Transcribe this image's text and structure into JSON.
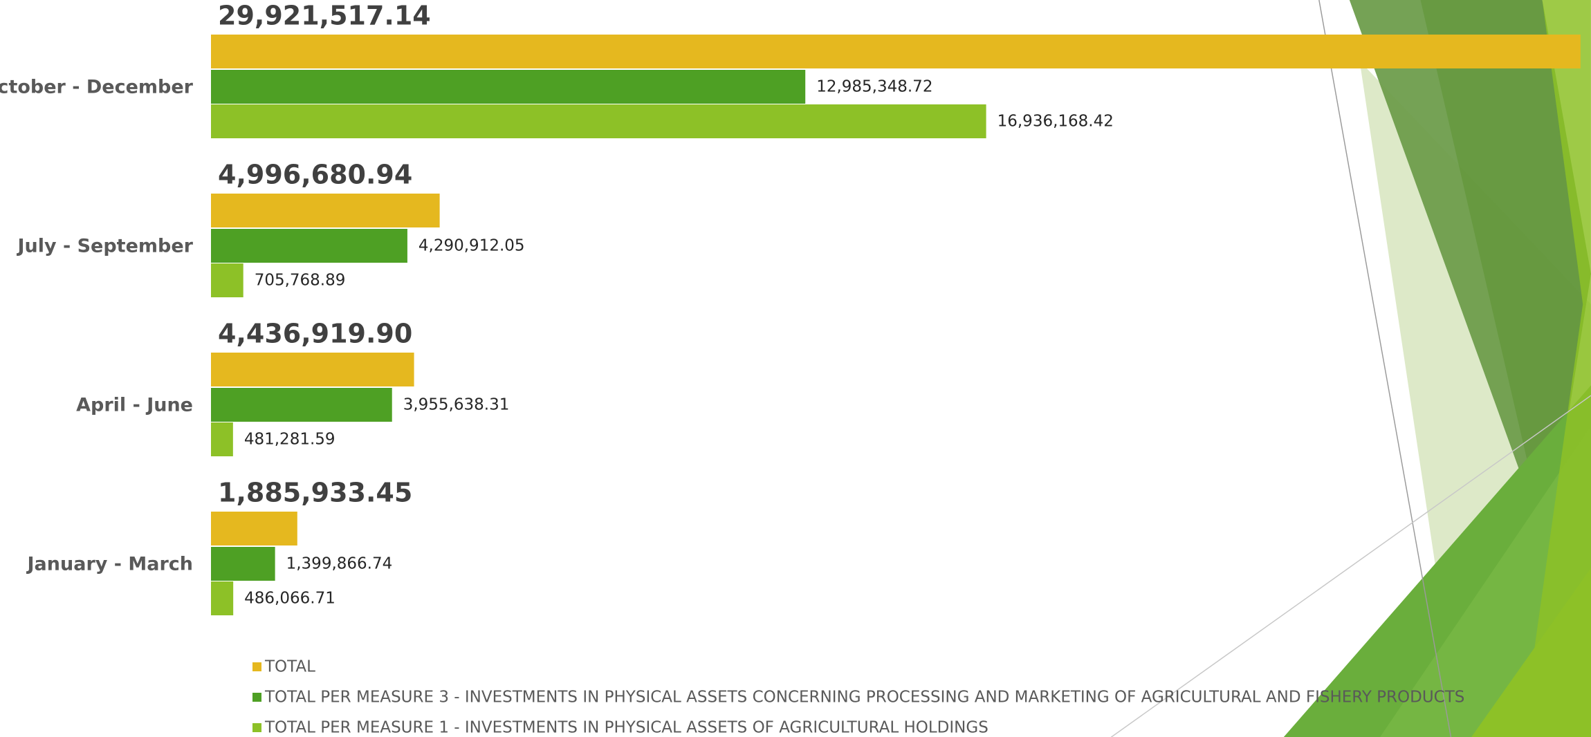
{
  "chart_data": {
    "type": "bar",
    "orientation": "horizontal",
    "categories": [
      "January - March",
      "April - June",
      "July - September",
      "October - December"
    ],
    "series": [
      {
        "name": "TOTAL",
        "color": "#e5b81f",
        "values": [
          1885933.45,
          4436919.9,
          4996680.94,
          29921517.14
        ],
        "value_labels": [
          "1,885,933.45",
          "4,436,919.90",
          "4,996,680.94",
          "29,921,517.14"
        ]
      },
      {
        "name": "TOTAL PER MEASURE 3 - INVESTMENTS IN PHYSICAL ASSETS CONCERNING PROCESSING AND MARKETING OF AGRICULTURAL AND FISHERY PRODUCTS",
        "color": "#4ea024",
        "values": [
          1399866.74,
          3955638.31,
          4290912.05,
          12985348.72
        ],
        "value_labels": [
          "1,399,866.74",
          "3,955,638.31",
          "4,290,912.05",
          "12,985,348.72"
        ]
      },
      {
        "name": "TOTAL PER MEASURE 1 - INVESTMENTS IN PHYSICAL ASSETS OF AGRICULTURAL HOLDINGS",
        "color": "#8dc127",
        "values": [
          486066.71,
          481281.59,
          705768.89,
          16936168.42
        ],
        "value_labels": [
          "486,066.71",
          "481,281.59",
          "705,768.89",
          "16,936,168.42"
        ]
      }
    ],
    "xlim": [
      0,
      30000000
    ]
  }
}
